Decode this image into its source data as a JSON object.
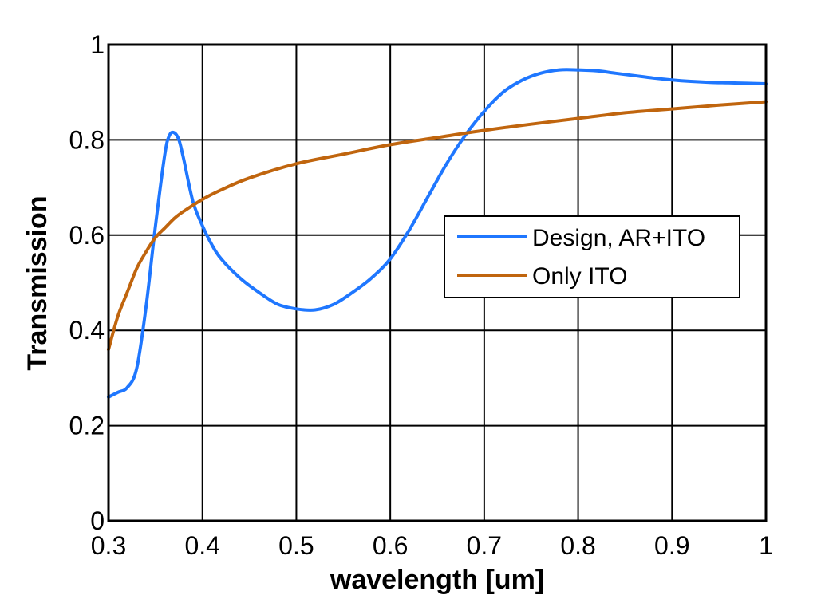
{
  "chart_data": {
    "type": "line",
    "title": "",
    "xlabel": "wavelength [um]",
    "ylabel": "Transmission",
    "xlim": [
      0.3,
      1.0
    ],
    "ylim": [
      0,
      1
    ],
    "grid": true,
    "legend_position": "center-right",
    "x_tick_labels": [
      "0.3",
      "0.4",
      "0.5",
      "0.6",
      "0.7",
      "0.8",
      "0.9",
      "1"
    ],
    "y_tick_labels": [
      "0",
      "0.2",
      "0.4",
      "0.6",
      "0.8",
      "1"
    ],
    "series": [
      {
        "name": "Design, AR+ITO",
        "color": "#1f77ff",
        "x": [
          0.3,
          0.31,
          0.32,
          0.33,
          0.34,
          0.35,
          0.36,
          0.365,
          0.37,
          0.375,
          0.38,
          0.39,
          0.4,
          0.41,
          0.42,
          0.44,
          0.46,
          0.48,
          0.5,
          0.52,
          0.54,
          0.56,
          0.58,
          0.6,
          0.62,
          0.64,
          0.66,
          0.68,
          0.7,
          0.72,
          0.74,
          0.76,
          0.78,
          0.8,
          0.82,
          0.84,
          0.86,
          0.88,
          0.9,
          0.92,
          0.94,
          0.96,
          0.98,
          1.0
        ],
        "y": [
          0.26,
          0.27,
          0.28,
          0.32,
          0.45,
          0.62,
          0.77,
          0.81,
          0.815,
          0.8,
          0.76,
          0.67,
          0.62,
          0.58,
          0.55,
          0.51,
          0.48,
          0.455,
          0.445,
          0.443,
          0.455,
          0.48,
          0.51,
          0.55,
          0.61,
          0.68,
          0.75,
          0.81,
          0.86,
          0.9,
          0.925,
          0.94,
          0.947,
          0.947,
          0.945,
          0.94,
          0.935,
          0.93,
          0.926,
          0.923,
          0.921,
          0.92,
          0.919,
          0.918
        ]
      },
      {
        "name": "Only ITO",
        "color": "#c0650e",
        "x": [
          0.3,
          0.31,
          0.32,
          0.33,
          0.34,
          0.35,
          0.36,
          0.37,
          0.38,
          0.4,
          0.42,
          0.45,
          0.5,
          0.55,
          0.6,
          0.65,
          0.7,
          0.75,
          0.8,
          0.85,
          0.9,
          0.95,
          1.0
        ],
        "y": [
          0.36,
          0.43,
          0.48,
          0.53,
          0.565,
          0.595,
          0.615,
          0.635,
          0.65,
          0.675,
          0.695,
          0.72,
          0.75,
          0.77,
          0.79,
          0.805,
          0.82,
          0.833,
          0.845,
          0.857,
          0.865,
          0.873,
          0.88
        ]
      }
    ]
  }
}
